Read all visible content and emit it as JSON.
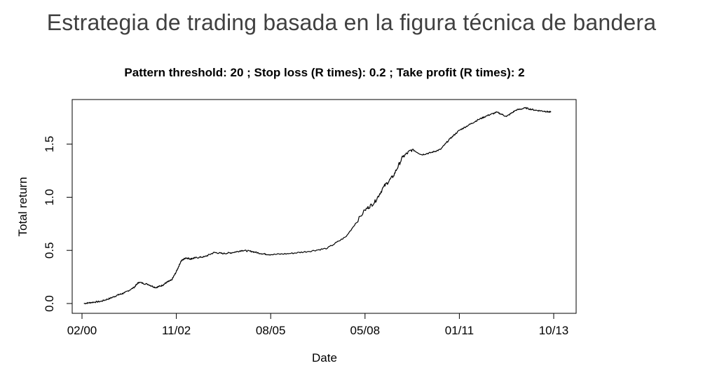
{
  "slide": {
    "title": "Estrategia de trading basada en la figura técnica de bandera"
  },
  "chart_data": {
    "type": "line",
    "title": "Pattern threshold:  20 ; Stop loss (R times):  0.2 ; Take profit (R times):  2",
    "xlabel": "Date",
    "ylabel": "Total return",
    "x_ticks": [
      "02/00",
      "11/02",
      "08/05",
      "05/08",
      "01/11",
      "10/13"
    ],
    "y_ticks": [
      "0.0",
      "0.5",
      "1.0",
      "1.5"
    ],
    "xlim": [
      0,
      5
    ],
    "ylim": [
      -0.05,
      1.9
    ],
    "line_color": "#000000",
    "grid": false,
    "series": [
      {
        "x": [
          0.02,
          0.1,
          0.2,
          0.3,
          0.38,
          0.45,
          0.55,
          0.6,
          0.7,
          0.78,
          0.85,
          0.9,
          0.95,
          1.0,
          1.05,
          1.1,
          1.15,
          1.2,
          1.3,
          1.4,
          1.5,
          1.6,
          1.7,
          1.8,
          1.9,
          2.0,
          2.2,
          2.4,
          2.6,
          2.8,
          3.0,
          3.1,
          3.2,
          3.3,
          3.4,
          3.5,
          3.6,
          3.7,
          3.8,
          3.9,
          4.0,
          4.1,
          4.2,
          4.3,
          4.4,
          4.5,
          4.6,
          4.7,
          4.8,
          4.9,
          4.97
        ],
        "y": [
          0.0,
          0.01,
          0.02,
          0.05,
          0.08,
          0.1,
          0.15,
          0.2,
          0.18,
          0.15,
          0.17,
          0.2,
          0.22,
          0.3,
          0.4,
          0.43,
          0.42,
          0.43,
          0.44,
          0.48,
          0.47,
          0.48,
          0.5,
          0.49,
          0.47,
          0.46,
          0.47,
          0.49,
          0.52,
          0.63,
          0.88,
          0.95,
          1.1,
          1.2,
          1.38,
          1.45,
          1.4,
          1.42,
          1.45,
          1.55,
          1.63,
          1.68,
          1.73,
          1.77,
          1.8,
          1.76,
          1.82,
          1.84,
          1.82,
          1.81,
          1.8
        ]
      }
    ]
  }
}
